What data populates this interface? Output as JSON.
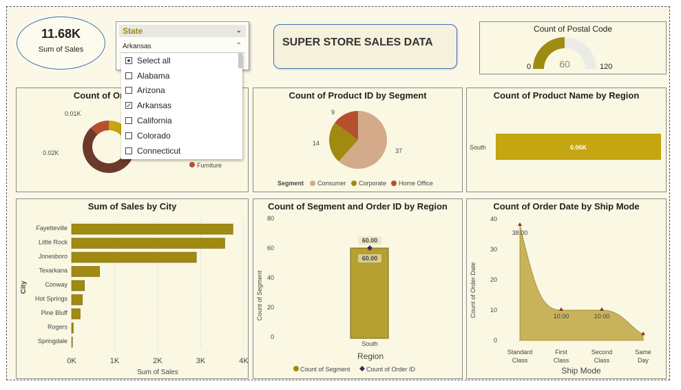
{
  "kpi": {
    "value": "11.68K",
    "label": "Sum of Sales"
  },
  "slicer": {
    "title": "State",
    "selected": "Arkansas",
    "items": [
      {
        "label": "Select all",
        "state": "partial"
      },
      {
        "label": "Alabama",
        "state": "unchecked"
      },
      {
        "label": "Arizona",
        "state": "unchecked"
      },
      {
        "label": "Arkansas",
        "state": "checked"
      },
      {
        "label": "California",
        "state": "unchecked"
      },
      {
        "label": "Colorado",
        "state": "unchecked"
      },
      {
        "label": "Connecticut",
        "state": "unchecked"
      }
    ]
  },
  "report_title": "SUPER STORE SALES DATA",
  "gauge": {
    "title": "Count of Postal Code",
    "value": "60",
    "min": "0",
    "max": "120"
  },
  "colors": {
    "gold": "#a08a10",
    "goldLight": "#c4a512",
    "brown": "#6b3a2a",
    "rust": "#b5502f",
    "tan": "#d3ab8a",
    "area": "#c9b35a"
  },
  "chart_data": [
    {
      "type": "pie",
      "title": "Count of Ord",
      "labels": [
        "0.01K",
        "0.02K"
      ],
      "legend": [
        "Furniture"
      ],
      "slices": [
        0.12,
        0.28,
        0.6
      ]
    },
    {
      "type": "pie",
      "title": "Count of Product ID by Segment",
      "legend_title": "Segment",
      "categories": [
        "Consumer",
        "Corporate",
        "Home Office"
      ],
      "values": [
        37,
        14,
        9
      ]
    },
    {
      "type": "bar",
      "title": "Count of Product Name by Region",
      "categories": [
        "South"
      ],
      "values": [
        60
      ],
      "data_label": "0.06K"
    },
    {
      "type": "bar",
      "title": "Sum of Sales by City",
      "ylabel": "City",
      "xlabel": "Sum of Sales",
      "categories": [
        "Fayetteville",
        "Little Rock",
        "Jonesboro",
        "Texarkana",
        "Conway",
        "Hot Springs",
        "Pine Bluff",
        "Rogers",
        "Springdale"
      ],
      "values": [
        3750,
        3560,
        2900,
        650,
        300,
        250,
        200,
        40,
        20
      ],
      "xticks": [
        "0K",
        "1K",
        "2K",
        "3K",
        "4K"
      ],
      "xlim": [
        0,
        4000
      ]
    },
    {
      "type": "bar",
      "title": "Count of Segment and Order ID by Region",
      "xlabel": "Region",
      "ylabel": "Count of Segment",
      "categories": [
        "South"
      ],
      "series": [
        {
          "name": "Count of Segment",
          "values": [
            60
          ]
        },
        {
          "name": "Count of Order ID",
          "values": [
            60
          ]
        }
      ],
      "labels": [
        "60.00",
        "60.00"
      ],
      "yticks": [
        "0",
        "20",
        "40",
        "60",
        "80"
      ],
      "ylim": [
        0,
        80
      ]
    },
    {
      "type": "area",
      "title": "Count of Order Date by Ship Mode",
      "xlabel": "Ship Mode",
      "ylabel": "Count of Order Date",
      "categories": [
        "Standard Class",
        "First Class",
        "Second Class",
        "Same Day"
      ],
      "values": [
        38,
        10,
        10,
        2
      ],
      "labels": [
        "38.00",
        "10.00",
        "10.00",
        ""
      ],
      "yticks": [
        "0",
        "10",
        "20",
        "30",
        "40"
      ],
      "ylim": [
        0,
        40
      ]
    }
  ]
}
